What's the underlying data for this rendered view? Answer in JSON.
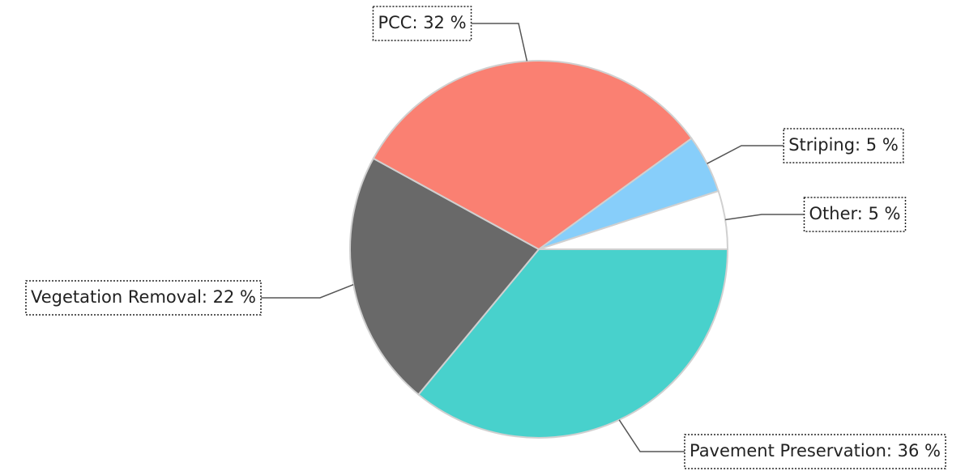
{
  "chart_data": {
    "type": "pie",
    "values": [
      36,
      22,
      32,
      5,
      5
    ],
    "value_labels": [
      "Pavement Preservation: 36 %",
      "Vegetation Removal: 22 %",
      "PCC: 32 %",
      "Striping: 5 %",
      "Other: 5 %"
    ],
    "colors": [
      "#48d1cc",
      "#696969",
      "#fa8072",
      "#87cefa",
      "#ffffff"
    ]
  }
}
